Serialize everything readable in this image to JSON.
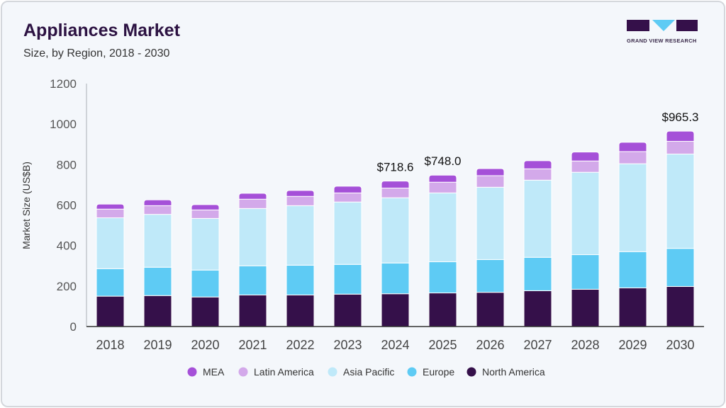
{
  "header": {
    "title": "Appliances Market",
    "subtitle": "Size, by Region, 2018 - 2030"
  },
  "logo": {
    "text": "GRAND VIEW RESEARCH"
  },
  "chart_data": {
    "type": "bar",
    "stacked": true,
    "title": "Appliances Market",
    "subtitle": "Size, by Region, 2018 - 2030",
    "xlabel": "",
    "ylabel": "Market Size (US$B)",
    "ylim": [
      0,
      1200
    ],
    "yticks": [
      0,
      200,
      400,
      600,
      800,
      1000,
      1200
    ],
    "grid": false,
    "legend": "bottom",
    "categories": [
      "2018",
      "2019",
      "2020",
      "2021",
      "2022",
      "2023",
      "2024",
      "2025",
      "2026",
      "2027",
      "2028",
      "2029",
      "2030"
    ],
    "series": [
      {
        "name": "North America",
        "color": "#35104a",
        "values": [
          150,
          153,
          146,
          156,
          156,
          160,
          162,
          166,
          169,
          177,
          184,
          191,
          198
        ]
      },
      {
        "name": "Europe",
        "color": "#5ecbf4",
        "values": [
          136,
          140,
          133,
          144,
          147,
          147,
          152,
          154,
          162,
          165,
          171,
          179,
          188
        ]
      },
      {
        "name": "Asia Pacific",
        "color": "#bfe9f9",
        "values": [
          251,
          261,
          255,
          283,
          294,
          308,
          322,
          340,
          357,
          381,
          407,
          434,
          466
        ]
      },
      {
        "name": "Latin America",
        "color": "#d3a9ea",
        "values": [
          43,
          43,
          42,
          46,
          46,
          45,
          48,
          53,
          57,
          56,
          56,
          60,
          63
        ]
      },
      {
        "name": "MEA",
        "color": "#a550d8",
        "values": [
          25,
          29,
          26,
          29,
          29,
          33,
          34.6,
          35,
          35,
          40,
          44,
          46,
          50.3
        ]
      }
    ],
    "annotations": [
      {
        "category": "2024",
        "label": "$718.6"
      },
      {
        "category": "2025",
        "label": "$748.0"
      },
      {
        "category": "2030",
        "label": "$965.3"
      }
    ],
    "legend_order": [
      "MEA",
      "Latin America",
      "Asia Pacific",
      "Europe",
      "North America"
    ]
  }
}
